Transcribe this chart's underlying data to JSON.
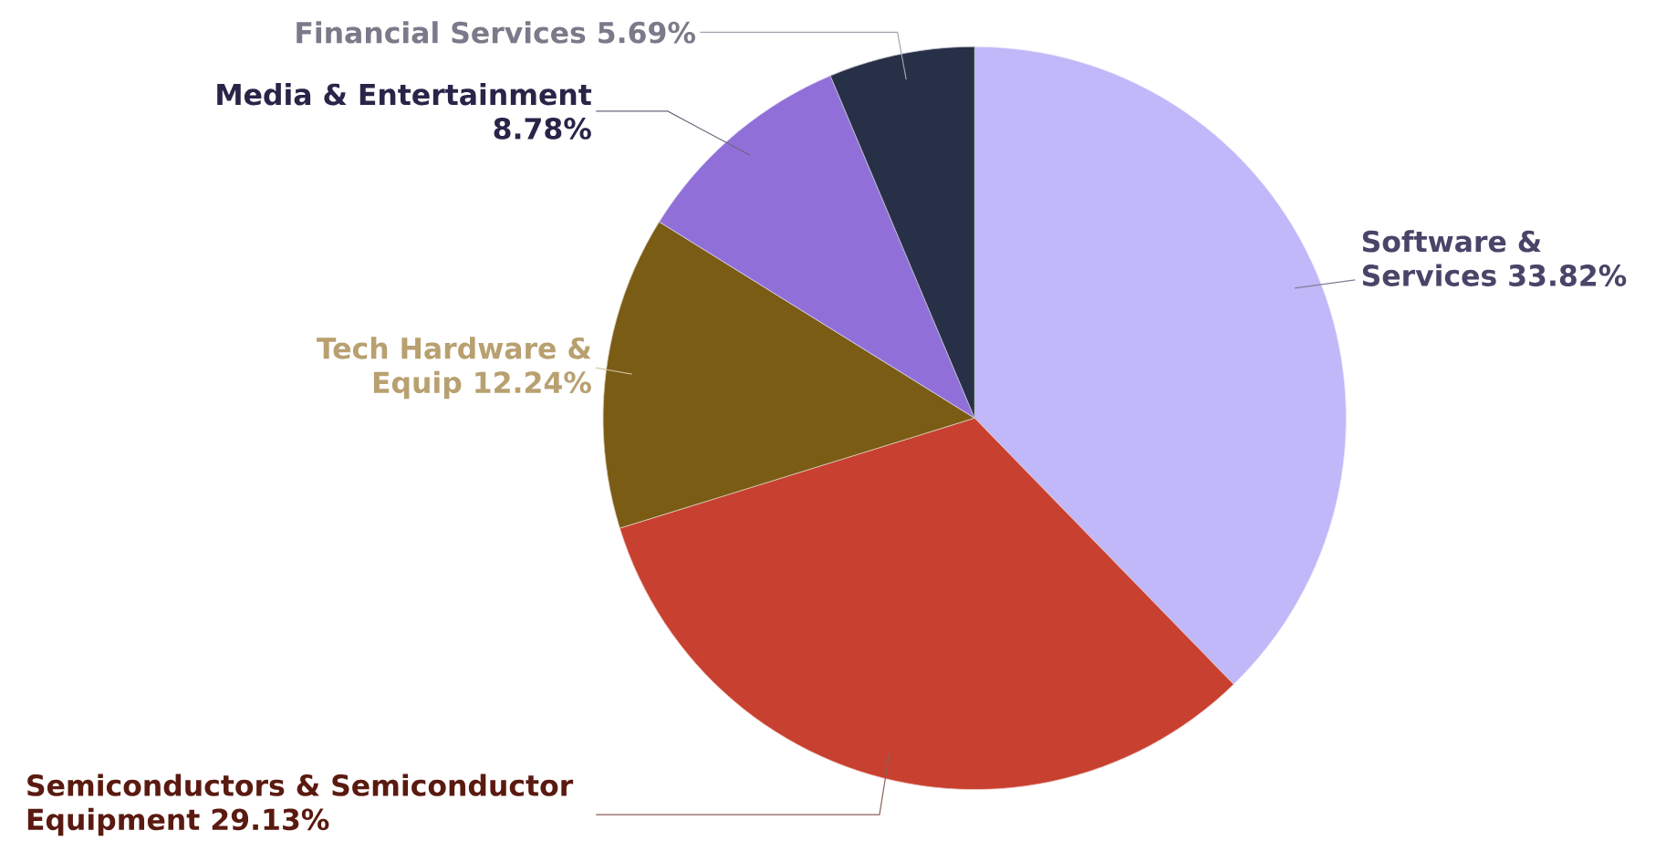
{
  "chart_data": {
    "type": "pie",
    "categories": [
      "Software & Services",
      "Semiconductors & Semiconductor Equipment",
      "Tech Hardware & Equip",
      "Media & Entertainment",
      "Financial Services"
    ],
    "values": [
      33.82,
      29.13,
      12.24,
      8.78,
      5.69
    ],
    "value_labels": [
      "33.82%",
      "29.13%",
      "12.24%",
      "8.78%",
      "5.69%"
    ],
    "colors": [
      "#c0b8f8",
      "#c84030",
      "#7a5c14",
      "#9070d8",
      "#283048"
    ]
  }
}
